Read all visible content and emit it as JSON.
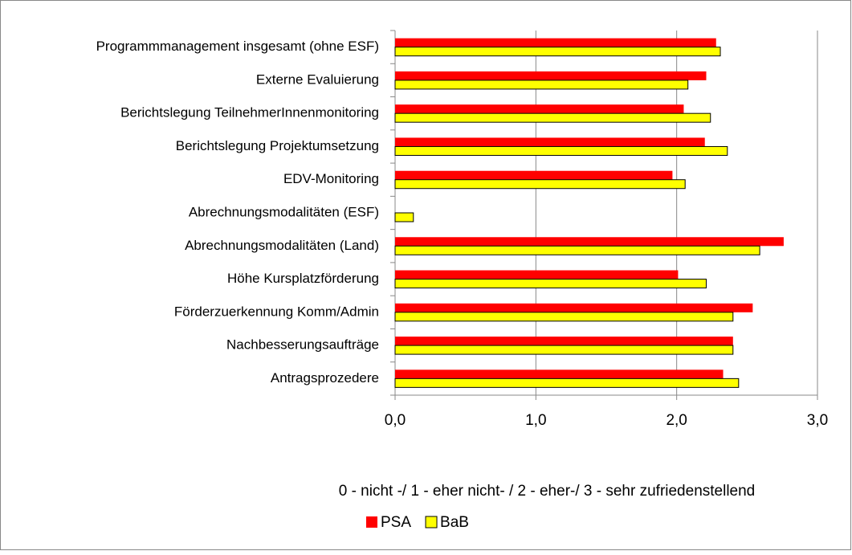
{
  "chart_data": {
    "type": "hbar",
    "categories": [
      "Programmmanagement insgesamt (ohne ESF)",
      "Externe Evaluierung",
      "Berichtslegung TeilnehmerInnenmonitoring",
      "Berichtslegung Projektumsetzung",
      "EDV-Monitoring",
      "Abrechnungsmodalitäten (ESF)",
      "Abrechnungsmodalitäten (Land)",
      "Höhe Kursplatzförderung",
      "Förderzuerkennung Komm/Admin",
      "Nachbesserungsaufträge",
      "Antragsprozedere"
    ],
    "series": [
      {
        "name": "PSA",
        "color": "#ff0000",
        "values": [
          2.28,
          2.21,
          2.05,
          2.2,
          1.97,
          null,
          2.76,
          2.01,
          2.54,
          2.4,
          2.33
        ]
      },
      {
        "name": "BaB",
        "color": "#ffff00",
        "values": [
          2.31,
          2.08,
          2.24,
          2.36,
          2.06,
          0.13,
          2.59,
          2.21,
          2.4,
          2.4,
          2.44
        ]
      }
    ],
    "xlim": [
      0,
      3
    ],
    "xticks": [
      {
        "value": 0,
        "label": "0,0"
      },
      {
        "value": 1,
        "label": "1,0"
      },
      {
        "value": 2,
        "label": "2,0"
      },
      {
        "value": 3,
        "label": "3,0"
      }
    ],
    "xlabel": "0 - nicht -/ 1 - eher nicht- / 2 - eher-/ 3 - sehr zufriedenstellend",
    "grid": true,
    "legend": "bottom"
  }
}
